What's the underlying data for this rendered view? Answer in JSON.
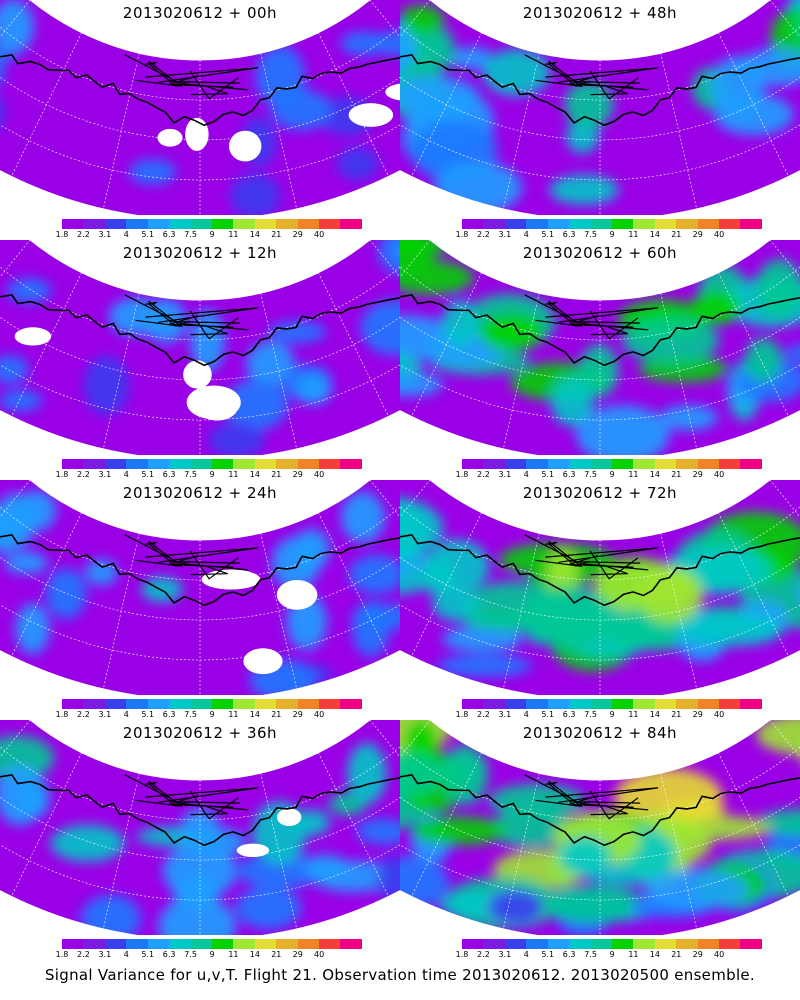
{
  "panels": [
    {
      "title": "2013020612 + 00h",
      "lead": "00h"
    },
    {
      "title": "2013020612 + 12h",
      "lead": "12h"
    },
    {
      "title": "2013020612 + 24h",
      "lead": "24h"
    },
    {
      "title": "2013020612 + 36h",
      "lead": "36h"
    },
    {
      "title": "2013020612 + 48h",
      "lead": "48h"
    },
    {
      "title": "2013020612 + 60h",
      "lead": "60h"
    },
    {
      "title": "2013020612 + 72h",
      "lead": "72h"
    },
    {
      "title": "2013020612 + 84h",
      "lead": "84h"
    }
  ],
  "colorbar": {
    "labels": [
      "1.8",
      "2.2",
      "3.1",
      "4",
      "5.1",
      "6.3",
      "7.5",
      "9",
      "11",
      "14",
      "21",
      "29",
      "40"
    ],
    "colors": [
      "#9a00e6",
      "#7a1ce6",
      "#3c3cf0",
      "#1e78ff",
      "#1ea0ff",
      "#00c8c8",
      "#00c896",
      "#00d200",
      "#a0e632",
      "#e6dc32",
      "#e6af2d",
      "#f08228",
      "#fa3c3c",
      "#f00082"
    ]
  },
  "caption": "Signal Variance for u,v,T. Flight 21. Observation time 2013020612. 2013020500 ensemble."
}
